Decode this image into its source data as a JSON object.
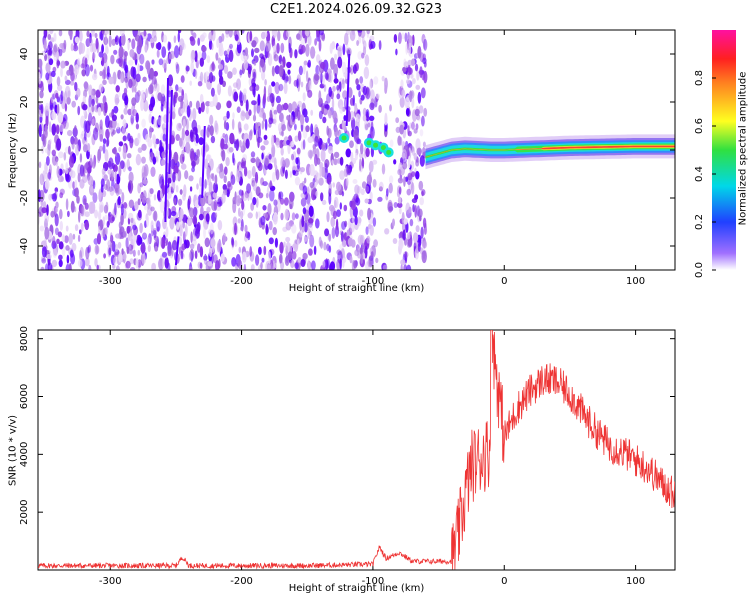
{
  "title": "C2E1.2024.026.09.32.G23",
  "top_panel": {
    "xlabel": "Height of straight line (km)",
    "ylabel": "Frequency (Hz)",
    "colorbar_label": "Normalized spectral amplitude",
    "xlim": [
      -355,
      130
    ],
    "ylim": [
      -50,
      50
    ]
  },
  "bottom_panel": {
    "xlabel": "Height of straight line (km)",
    "ylabel": "SNR (10 * v/v)",
    "xlim": [
      -355,
      130
    ],
    "ylim": [
      0,
      8300
    ]
  },
  "colors": {
    "snr_line": "#ee3333"
  },
  "chart_data": [
    {
      "type": "heatmap",
      "title": "C2E1.2024.026.09.32.G23",
      "xlabel": "Height of straight line (km)",
      "ylabel": "Frequency (Hz)",
      "x_ticks": [
        -300,
        -200,
        -100,
        0,
        100
      ],
      "y_ticks": [
        -40,
        -20,
        0,
        20,
        40
      ],
      "xlim": [
        -355,
        130
      ],
      "ylim": [
        -50,
        50
      ],
      "colorbar": {
        "label": "Normalized spectral amplitude",
        "range": [
          0,
          1
        ],
        "ticks": [
          0.0,
          0.2,
          0.4,
          0.6,
          0.8
        ]
      },
      "ridge": [
        [
          -60,
          -3
        ],
        [
          -40,
          0
        ],
        [
          -30,
          0.5
        ],
        [
          -10,
          0
        ],
        [
          0,
          0
        ],
        [
          50,
          1
        ],
        [
          100,
          1.5
        ],
        [
          130,
          1.5
        ]
      ],
      "noise_region": [
        -355,
        -60
      ]
    },
    {
      "type": "line",
      "xlabel": "Height of straight line (km)",
      "ylabel": "SNR (10 * v/v)",
      "x_ticks": [
        -300,
        -200,
        -100,
        0,
        100
      ],
      "y_ticks": [
        2000,
        4000,
        6000,
        8000
      ],
      "xlim": [
        -355,
        130
      ],
      "ylim": [
        0,
        8300
      ],
      "series": [
        {
          "points": [
            [
              -355,
              150
            ],
            [
              -250,
              150
            ],
            [
              -245,
              450
            ],
            [
              -240,
              150
            ],
            [
              -150,
              150
            ],
            [
              -100,
              200
            ],
            [
              -95,
              800
            ],
            [
              -90,
              400
            ],
            [
              -80,
              600
            ],
            [
              -70,
              300
            ],
            [
              -40,
              300
            ],
            [
              -35,
              1200
            ],
            [
              -30,
              2500
            ],
            [
              -25,
              3600
            ],
            [
              -20,
              3800
            ],
            [
              -15,
              4000
            ],
            [
              -10,
              4200
            ],
            [
              -10,
              8300
            ],
            [
              0,
              4600
            ],
            [
              10,
              5600
            ],
            [
              20,
              6200
            ],
            [
              30,
              6600
            ],
            [
              40,
              6500
            ],
            [
              50,
              6100
            ],
            [
              60,
              5400
            ],
            [
              70,
              4800
            ],
            [
              80,
              4300
            ],
            [
              90,
              4100
            ],
            [
              100,
              3800
            ],
            [
              110,
              3500
            ],
            [
              120,
              3000
            ],
            [
              130,
              2600
            ]
          ]
        }
      ]
    }
  ]
}
